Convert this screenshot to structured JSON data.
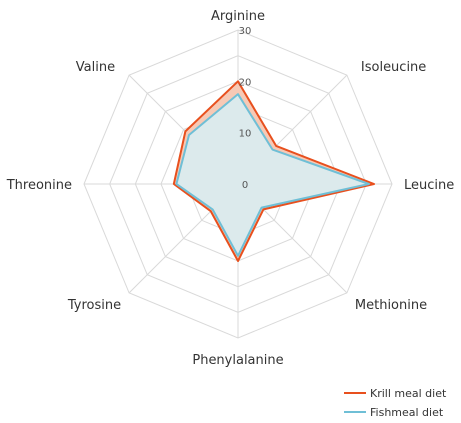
{
  "chart_data": {
    "type": "radar",
    "axes": [
      "Arginine",
      "Isoleucine",
      "Leucine",
      "Methionine",
      "Phenylalanine",
      "Tyrosine",
      "Threonine",
      "Valine"
    ],
    "ticks": [
      "0",
      "10",
      "20",
      "30"
    ],
    "rlim": [
      0,
      30
    ],
    "grid": true,
    "legend": "bottom-right",
    "colors": {
      "grid": "#d9d9d9",
      "text": "#333333"
    },
    "series": [
      {
        "name": "Krill meal diet",
        "values": [
          20.0,
          10.5,
          26.5,
          7.0,
          15.0,
          7.5,
          12.5,
          14.5
        ],
        "stroke": "#e8501e",
        "fill": "#f7c9b5"
      },
      {
        "name": "Fishmeal diet",
        "values": [
          17.5,
          9.5,
          25.5,
          6.5,
          14.0,
          7.0,
          12.0,
          13.5
        ],
        "stroke": "#6fbfd6",
        "fill": "#d7f0f6"
      }
    ]
  }
}
